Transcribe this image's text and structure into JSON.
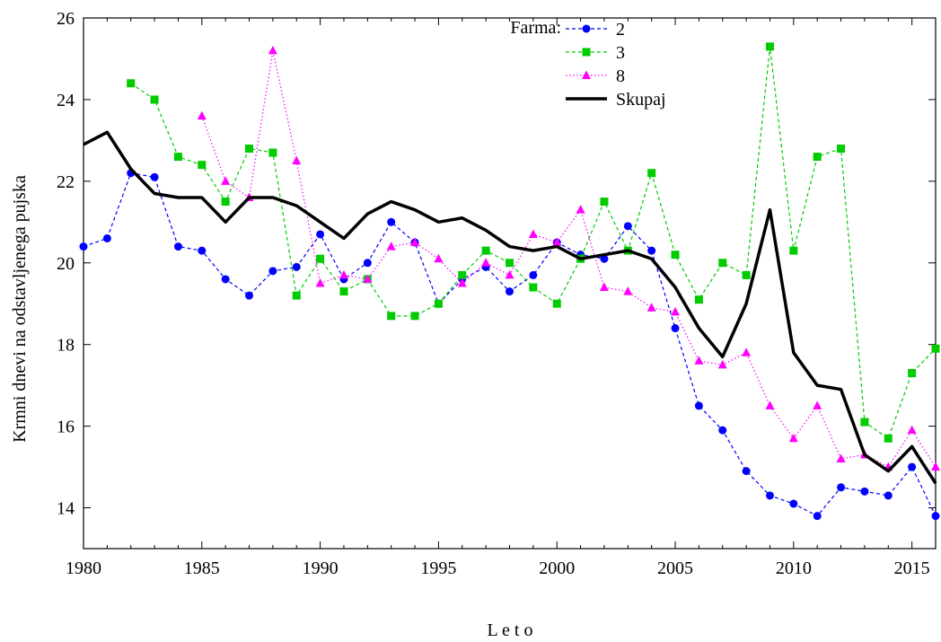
{
  "chart_data": {
    "type": "line",
    "xlabel": "L e t o",
    "ylabel": "Krmni dnevi na odstavljenega pujska",
    "xlim": [
      1980,
      2016
    ],
    "ylim": [
      13,
      26
    ],
    "xticks": [
      1980,
      1985,
      1990,
      1995,
      2000,
      2005,
      2010,
      2015
    ],
    "yticks": [
      14,
      16,
      18,
      20,
      22,
      24,
      26
    ],
    "grid": false,
    "legend": {
      "title": "Farma:",
      "position": "top-center"
    },
    "series": [
      {
        "name": "2",
        "color": "#0000ff",
        "marker": "circle",
        "line_style": "dashed",
        "points": [
          [
            1980,
            20.4
          ],
          [
            1981,
            20.6
          ],
          [
            1982,
            22.2
          ],
          [
            1983,
            22.1
          ],
          [
            1984,
            20.4
          ],
          [
            1985,
            20.3
          ],
          [
            1986,
            19.6
          ],
          [
            1987,
            19.2
          ],
          [
            1988,
            19.8
          ],
          [
            1989,
            19.9
          ],
          [
            1990,
            20.7
          ],
          [
            1991,
            19.6
          ],
          [
            1992,
            20.0
          ],
          [
            1993,
            21.0
          ],
          [
            1994,
            20.5
          ],
          [
            1995,
            19.0
          ],
          [
            1996,
            19.6
          ],
          [
            1997,
            19.9
          ],
          [
            1998,
            19.3
          ],
          [
            1999,
            19.7
          ],
          [
            2000,
            20.5
          ],
          [
            2001,
            20.2
          ],
          [
            2002,
            20.1
          ],
          [
            2003,
            20.9
          ],
          [
            2004,
            20.3
          ],
          [
            2005,
            18.4
          ],
          [
            2006,
            16.5
          ],
          [
            2007,
            15.9
          ],
          [
            2008,
            14.9
          ],
          [
            2009,
            14.3
          ],
          [
            2010,
            14.1
          ],
          [
            2011,
            13.8
          ],
          [
            2012,
            14.5
          ],
          [
            2013,
            14.4
          ],
          [
            2014,
            14.3
          ],
          [
            2015,
            15.0
          ],
          [
            2016,
            13.8
          ]
        ]
      },
      {
        "name": "3",
        "color": "#00cc00",
        "marker": "square",
        "line_style": "dashed",
        "points": [
          [
            1982,
            24.4
          ],
          [
            1983,
            24.0
          ],
          [
            1984,
            22.6
          ],
          [
            1985,
            22.4
          ],
          [
            1986,
            21.5
          ],
          [
            1987,
            22.8
          ],
          [
            1988,
            22.7
          ],
          [
            1989,
            19.2
          ],
          [
            1990,
            20.1
          ],
          [
            1991,
            19.3
          ],
          [
            1992,
            19.6
          ],
          [
            1993,
            18.7
          ],
          [
            1994,
            18.7
          ],
          [
            1995,
            19.0
          ],
          [
            1996,
            19.7
          ],
          [
            1997,
            20.3
          ],
          [
            1998,
            20.0
          ],
          [
            1999,
            19.4
          ],
          [
            2000,
            19.0
          ],
          [
            2001,
            20.1
          ],
          [
            2002,
            21.5
          ],
          [
            2003,
            20.3
          ],
          [
            2004,
            22.2
          ],
          [
            2005,
            20.2
          ],
          [
            2006,
            19.1
          ],
          [
            2007,
            20.0
          ],
          [
            2008,
            19.7
          ],
          [
            2009,
            25.3
          ],
          [
            2010,
            20.3
          ],
          [
            2011,
            22.6
          ],
          [
            2012,
            22.8
          ],
          [
            2013,
            16.1
          ],
          [
            2014,
            15.7
          ],
          [
            2015,
            17.3
          ],
          [
            2016,
            17.9
          ]
        ]
      },
      {
        "name": "8",
        "color": "#ff00ff",
        "marker": "triangle",
        "line_style": "dotted",
        "points": [
          [
            1985,
            23.6
          ],
          [
            1986,
            22.0
          ],
          [
            1987,
            21.6
          ],
          [
            1988,
            25.2
          ],
          [
            1989,
            22.5
          ],
          [
            1990,
            19.5
          ],
          [
            1991,
            19.7
          ],
          [
            1992,
            19.6
          ],
          [
            1993,
            20.4
          ],
          [
            1994,
            20.5
          ],
          [
            1995,
            20.1
          ],
          [
            1996,
            19.5
          ],
          [
            1997,
            20.0
          ],
          [
            1998,
            19.7
          ],
          [
            1999,
            20.7
          ],
          [
            2000,
            20.5
          ],
          [
            2001,
            21.3
          ],
          [
            2002,
            19.4
          ],
          [
            2003,
            19.3
          ],
          [
            2004,
            18.9
          ],
          [
            2005,
            18.8
          ],
          [
            2006,
            17.6
          ],
          [
            2007,
            17.5
          ],
          [
            2008,
            17.8
          ],
          [
            2009,
            16.5
          ],
          [
            2010,
            15.7
          ],
          [
            2011,
            16.5
          ],
          [
            2012,
            15.2
          ],
          [
            2013,
            15.3
          ],
          [
            2014,
            15.0
          ],
          [
            2015,
            15.9
          ],
          [
            2016,
            15.0
          ]
        ]
      },
      {
        "name": "Skupaj",
        "color": "#000000",
        "marker": "none",
        "line_style": "solid",
        "points": [
          [
            1980,
            22.9
          ],
          [
            1981,
            23.2
          ],
          [
            1982,
            22.3
          ],
          [
            1983,
            21.7
          ],
          [
            1984,
            21.6
          ],
          [
            1985,
            21.6
          ],
          [
            1986,
            21.0
          ],
          [
            1987,
            21.6
          ],
          [
            1988,
            21.6
          ],
          [
            1989,
            21.4
          ],
          [
            1990,
            21.0
          ],
          [
            1991,
            20.6
          ],
          [
            1992,
            21.2
          ],
          [
            1993,
            21.5
          ],
          [
            1994,
            21.3
          ],
          [
            1995,
            21.0
          ],
          [
            1996,
            21.1
          ],
          [
            1997,
            20.8
          ],
          [
            1998,
            20.4
          ],
          [
            1999,
            20.3
          ],
          [
            2000,
            20.4
          ],
          [
            2001,
            20.1
          ],
          [
            2002,
            20.2
          ],
          [
            2003,
            20.3
          ],
          [
            2004,
            20.1
          ],
          [
            2005,
            19.4
          ],
          [
            2006,
            18.4
          ],
          [
            2007,
            17.7
          ],
          [
            2008,
            19.0
          ],
          [
            2009,
            21.3
          ],
          [
            2010,
            17.8
          ],
          [
            2011,
            17.0
          ],
          [
            2012,
            16.9
          ],
          [
            2013,
            15.3
          ],
          [
            2014,
            14.9
          ],
          [
            2015,
            15.5
          ],
          [
            2016,
            14.6
          ]
        ]
      }
    ]
  }
}
